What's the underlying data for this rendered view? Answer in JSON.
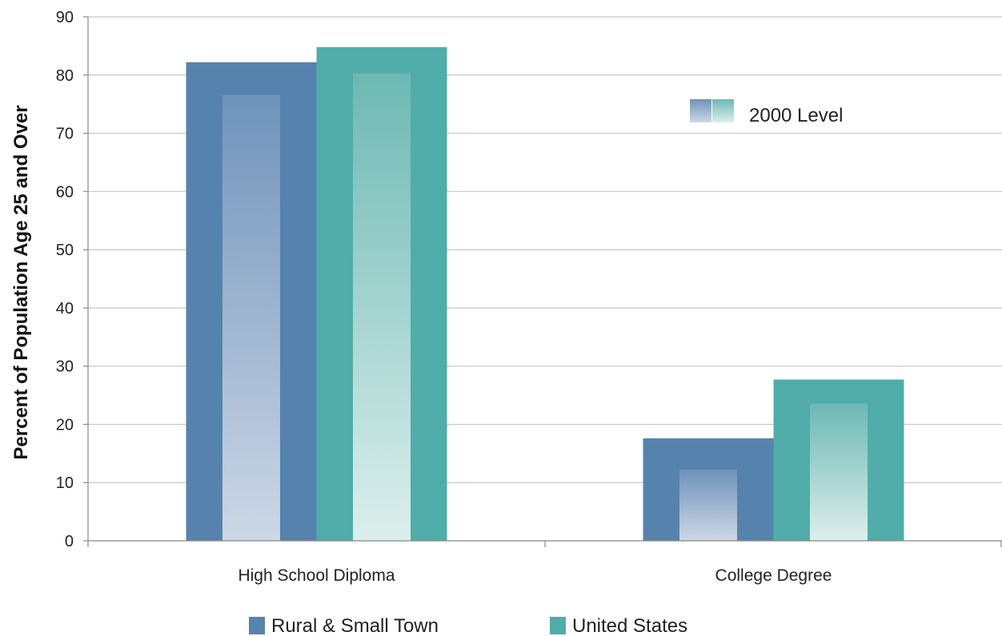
{
  "chart_data": {
    "type": "bar",
    "ylabel": "Percent of Population  Age 25 and Over",
    "ylim": [
      0,
      90
    ],
    "yticks": [
      0,
      10,
      20,
      30,
      40,
      50,
      60,
      70,
      80,
      90
    ],
    "categories": [
      "High School Diploma",
      "College Degree"
    ],
    "series": [
      {
        "name": "Rural & Small Town",
        "values": [
          82.2,
          17.6
        ],
        "level_2000": [
          76.6,
          12.2
        ],
        "color": "#5683ad"
      },
      {
        "name": "United States",
        "values": [
          84.8,
          27.7
        ],
        "level_2000": [
          80.3,
          23.6
        ],
        "color": "#50ada9"
      }
    ],
    "overlay_legend": "2000 Level",
    "grid": true,
    "legend_position": "bottom"
  }
}
